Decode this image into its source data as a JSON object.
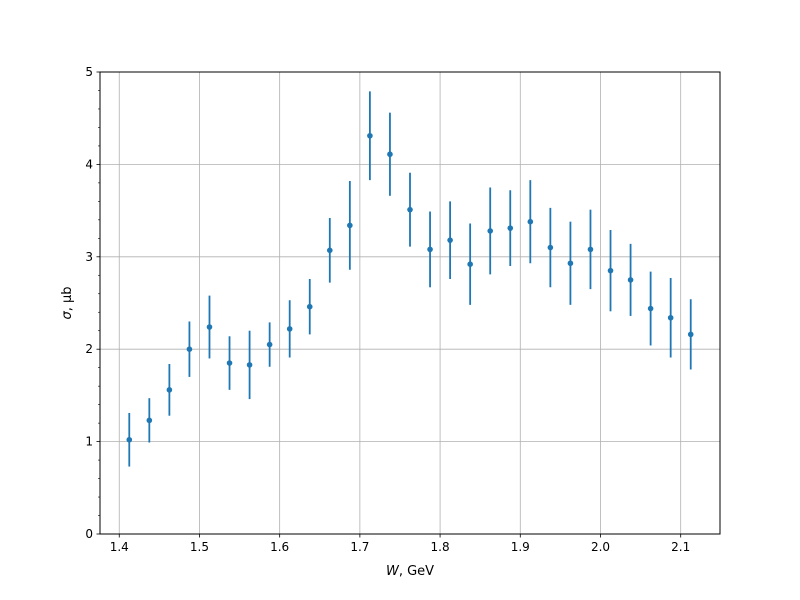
{
  "chart_data": {
    "type": "scatter",
    "title": "",
    "xlabel": {
      "symbol": "W",
      "unit": ", GeV"
    },
    "ylabel": {
      "symbol": "σ",
      "unit": ", μb"
    },
    "xlim": [
      1.376,
      2.149
    ],
    "ylim": [
      0,
      5
    ],
    "xticks": [
      1.4,
      1.5,
      1.6,
      1.7,
      1.8,
      1.9,
      2.0,
      2.1
    ],
    "xtick_labels": [
      "1.4",
      "1.5",
      "1.6",
      "1.7",
      "1.8",
      "1.9",
      "2.0",
      "2.1"
    ],
    "yticks": [
      0,
      1,
      2,
      3,
      4,
      5
    ],
    "ytick_labels": [
      "0",
      "1",
      "2",
      "3",
      "4",
      "5"
    ],
    "yminor_step": 0.2,
    "grid": true,
    "color": "#1f77b4",
    "x": [
      1.4125,
      1.4375,
      1.4625,
      1.4875,
      1.5125,
      1.5375,
      1.5625,
      1.5875,
      1.6125,
      1.6375,
      1.6625,
      1.6875,
      1.7125,
      1.7375,
      1.7625,
      1.7875,
      1.8125,
      1.8375,
      1.8625,
      1.8875,
      1.9125,
      1.9375,
      1.9625,
      1.9875,
      2.0125,
      2.0375,
      2.0625,
      2.0875,
      2.1125
    ],
    "y": [
      1.02,
      1.23,
      1.56,
      2.0,
      2.24,
      1.85,
      1.83,
      2.05,
      2.22,
      2.46,
      3.07,
      3.34,
      4.31,
      4.11,
      3.51,
      3.08,
      3.18,
      2.92,
      3.28,
      3.31,
      3.38,
      3.1,
      2.93,
      3.08,
      2.85,
      2.75,
      2.44,
      2.34,
      2.16
    ],
    "yerr": [
      0.29,
      0.24,
      0.28,
      0.3,
      0.34,
      0.29,
      0.37,
      0.24,
      0.31,
      0.3,
      0.35,
      0.48,
      0.48,
      0.45,
      0.4,
      0.41,
      0.42,
      0.44,
      0.47,
      0.41,
      0.45,
      0.43,
      0.45,
      0.43,
      0.44,
      0.39,
      0.4,
      0.43,
      0.38
    ]
  }
}
